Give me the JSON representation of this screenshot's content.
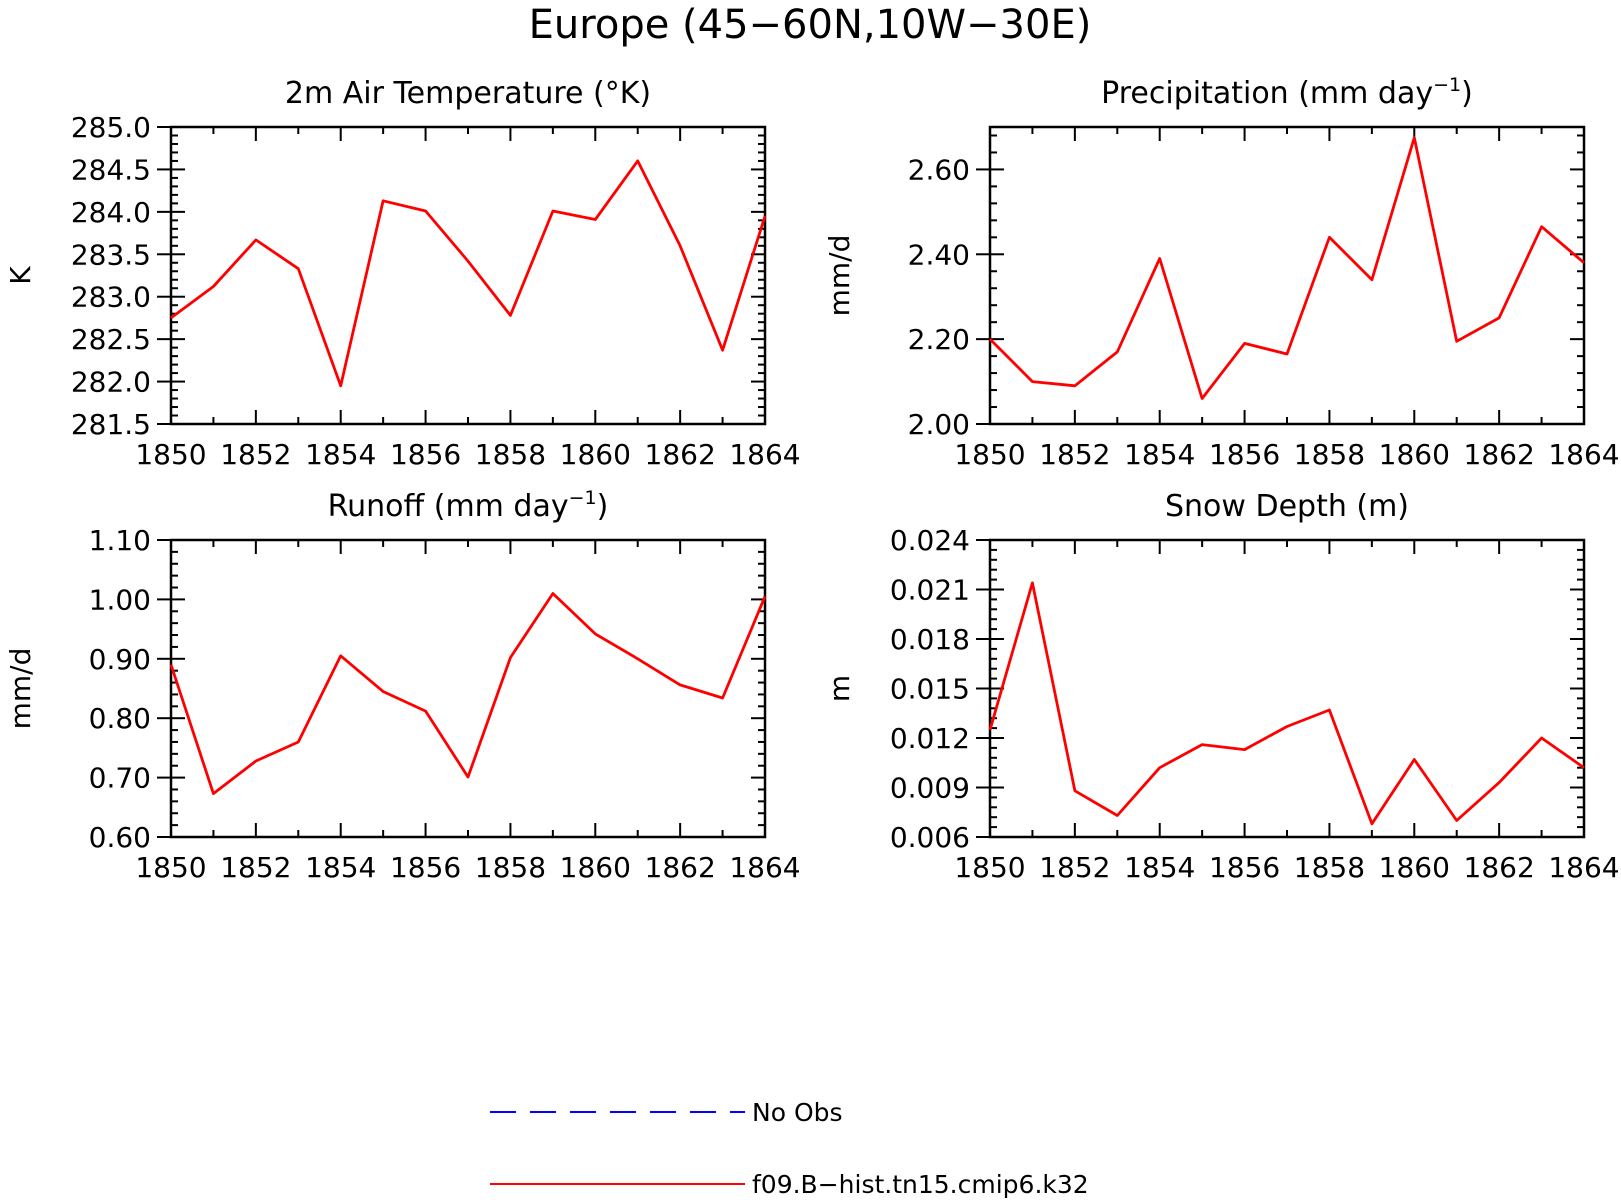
{
  "title": "Europe (45−60N,10W−30E)",
  "colors": {
    "model": "#ff0000",
    "obs": "#0000ff",
    "axis": "#000000"
  },
  "legend": {
    "entries": [
      {
        "label": "No Obs",
        "color": "#0000ff",
        "style": "dashed"
      },
      {
        "label": "f09.B−hist.tn15.cmip6.k32",
        "color": "#ff0000",
        "style": "solid"
      }
    ]
  },
  "chart_data": [
    {
      "type": "line",
      "title": "2m Air Temperature (°K)",
      "ylabel": "K",
      "xlim": [
        1850,
        1864
      ],
      "ylim": [
        281.5,
        285.0
      ],
      "xticks": [
        "1850",
        "1852",
        "1854",
        "1856",
        "1858",
        "1860",
        "1862",
        "1864"
      ],
      "yticks": [
        "281.5",
        "282.0",
        "282.5",
        "283.0",
        "283.5",
        "284.0",
        "284.5",
        "285.0"
      ],
      "x": [
        1850,
        1851,
        1852,
        1853,
        1854,
        1855,
        1856,
        1857,
        1858,
        1859,
        1860,
        1861,
        1862,
        1863,
        1864
      ],
      "series": [
        {
          "name": "f09.B−hist.tn15.cmip6.k32",
          "values": [
            282.75,
            283.12,
            283.67,
            283.33,
            281.95,
            284.13,
            284.01,
            283.42,
            282.78,
            284.01,
            283.91,
            284.6,
            283.6,
            282.37,
            283.95
          ]
        }
      ]
    },
    {
      "type": "line",
      "title": "Precipitation (mm day",
      "title_sup": "−1",
      "title_end": ")",
      "ylabel": "mm/d",
      "xlim": [
        1850,
        1864
      ],
      "ylim": [
        2.0,
        2.7
      ],
      "xticks": [
        "1850",
        "1852",
        "1854",
        "1856",
        "1858",
        "1860",
        "1862",
        "1864"
      ],
      "yticks": [
        "2.00",
        "2.20",
        "2.40",
        "2.60"
      ],
      "x": [
        1850,
        1851,
        1852,
        1853,
        1854,
        1855,
        1856,
        1857,
        1858,
        1859,
        1860,
        1861,
        1862,
        1863,
        1864
      ],
      "series": [
        {
          "name": "f09.B−hist.tn15.cmip6.k32",
          "values": [
            2.2,
            2.1,
            2.09,
            2.17,
            2.39,
            2.06,
            2.19,
            2.165,
            2.44,
            2.34,
            2.675,
            2.195,
            2.25,
            2.465,
            2.38
          ]
        }
      ]
    },
    {
      "type": "line",
      "title": "Runoff (mm day",
      "title_sup": "−1",
      "title_end": ")",
      "ylabel": "mm/d",
      "xlim": [
        1850,
        1864
      ],
      "ylim": [
        0.6,
        1.1
      ],
      "xticks": [
        "1850",
        "1852",
        "1854",
        "1856",
        "1858",
        "1860",
        "1862",
        "1864"
      ],
      "yticks": [
        "0.60",
        "0.70",
        "0.80",
        "0.90",
        "1.00",
        "1.10"
      ],
      "x": [
        1850,
        1851,
        1852,
        1853,
        1854,
        1855,
        1856,
        1857,
        1858,
        1859,
        1860,
        1861,
        1862,
        1863,
        1864
      ],
      "series": [
        {
          "name": "f09.B−hist.tn15.cmip6.k32",
          "values": [
            0.89,
            0.673,
            0.728,
            0.76,
            0.905,
            0.845,
            0.812,
            0.701,
            0.902,
            1.01,
            0.942,
            0.9,
            0.856,
            0.834,
            1.005
          ]
        }
      ]
    },
    {
      "type": "line",
      "title": "Snow Depth (m)",
      "ylabel": "m",
      "xlim": [
        1850,
        1864
      ],
      "ylim": [
        0.006,
        0.024
      ],
      "xticks": [
        "1850",
        "1852",
        "1854",
        "1856",
        "1858",
        "1860",
        "1862",
        "1864"
      ],
      "yticks": [
        "0.006",
        "0.009",
        "0.012",
        "0.015",
        "0.018",
        "0.021",
        "0.024"
      ],
      "x": [
        1850,
        1851,
        1852,
        1853,
        1854,
        1855,
        1856,
        1857,
        1858,
        1859,
        1860,
        1861,
        1862,
        1863,
        1864
      ],
      "series": [
        {
          "name": "f09.B−hist.tn15.cmip6.k32",
          "values": [
            0.0125,
            0.0214,
            0.0088,
            0.0073,
            0.0102,
            0.0116,
            0.0113,
            0.0127,
            0.0137,
            0.0068,
            0.0107,
            0.007,
            0.0093,
            0.012,
            0.0102
          ]
        }
      ]
    }
  ]
}
